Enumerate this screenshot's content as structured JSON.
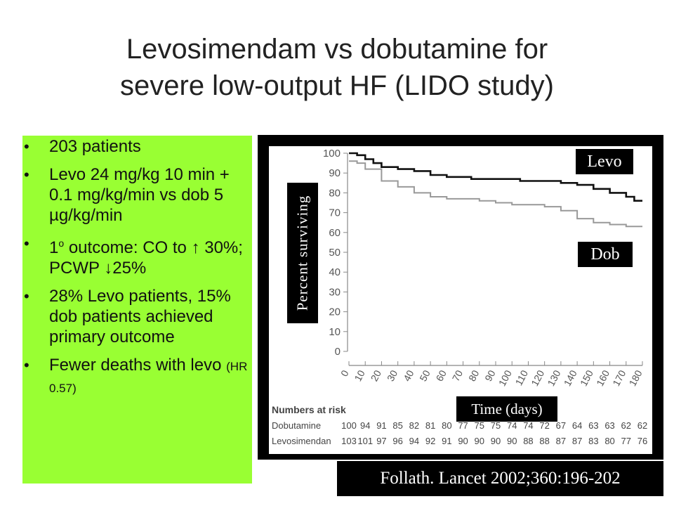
{
  "slide": {
    "title_line1": "Levosimendam vs dobutamine for",
    "title_line2": "severe low-output HF (LIDO study)",
    "bullets": {
      "b1": "203 patients",
      "b2": "Levo 24 mg/kg 10 min + 0.1 mg/kg/min vs dob 5 µg/kg/min",
      "b3_pre": "1",
      "b3_sup": "o",
      "b3_post": " outcome: CO to ↑ 30%; PCWP ↓25%",
      "b4": "28% Levo patients, 15% dob patients achieved primary outcome",
      "b5_main": "Fewer deaths with levo ",
      "b5_small": "(HR 0.57)"
    },
    "citation": "Follath. Lancet 2002;360:196-202"
  },
  "colors": {
    "bullet_box": "#99ff33",
    "levo_curve": "#000000",
    "dob_curve": "#999999",
    "frame": "#000000"
  },
  "chart_data": {
    "type": "line",
    "ylabel": "Percent surviving",
    "xlabel": "Time (days)",
    "ylim": [
      0,
      100
    ],
    "xlim": [
      0,
      180
    ],
    "x_ticks": [
      0,
      10,
      20,
      30,
      40,
      50,
      60,
      70,
      80,
      90,
      100,
      110,
      120,
      130,
      140,
      150,
      160,
      170,
      180
    ],
    "y_ticks": [
      0,
      10,
      20,
      30,
      40,
      50,
      60,
      70,
      80,
      90,
      100
    ],
    "series": [
      {
        "name": "Levo",
        "x": [
          0,
          5,
          10,
          15,
          20,
          30,
          40,
          50,
          60,
          75,
          90,
          105,
          120,
          130,
          140,
          150,
          160,
          170,
          175,
          180
        ],
        "y": [
          100,
          99,
          97,
          95,
          93,
          92,
          91,
          89,
          88,
          87,
          87,
          86,
          86,
          85,
          84,
          82,
          80,
          78,
          76,
          76
        ]
      },
      {
        "name": "Dob",
        "x": [
          0,
          5,
          10,
          20,
          30,
          40,
          50,
          60,
          70,
          80,
          90,
          100,
          110,
          120,
          130,
          140,
          150,
          160,
          170,
          180
        ],
        "y": [
          96,
          95,
          92,
          86,
          83,
          80,
          78,
          77,
          77,
          76,
          75,
          74,
          74,
          73,
          71,
          67,
          65,
          64,
          63,
          63
        ]
      }
    ],
    "legend_labels": {
      "levo": "Levo",
      "dob": "Dob"
    },
    "at_risk": {
      "header": "Numbers at risk",
      "rows": [
        {
          "label": "Dobutamine",
          "values": [
            100,
            94,
            91,
            85,
            82,
            81,
            80,
            77,
            75,
            75,
            74,
            74,
            72,
            67,
            64,
            63,
            63,
            62,
            62
          ]
        },
        {
          "label": "Levosimendan",
          "values": [
            103,
            101,
            97,
            96,
            94,
            92,
            91,
            90,
            90,
            90,
            90,
            88,
            88,
            87,
            87,
            83,
            80,
            77,
            76
          ]
        }
      ]
    }
  }
}
